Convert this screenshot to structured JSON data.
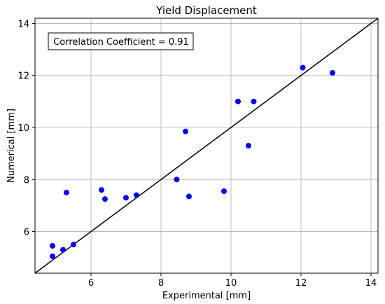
{
  "chart_data": {
    "type": "scatter",
    "title": "Yield Displacement",
    "xlabel": "Experimental [mm]",
    "ylabel": "Numerical [mm]",
    "xlim": [
      4.4,
      14.2
    ],
    "ylim": [
      4.4,
      14.2
    ],
    "xticks": [
      6,
      8,
      10,
      12,
      14
    ],
    "yticks": [
      6,
      8,
      10,
      12,
      14
    ],
    "grid": true,
    "annotation": "Correlation Coefficient = 0.91",
    "reference_line": {
      "from": [
        4.4,
        4.4
      ],
      "to": [
        14.2,
        14.2
      ],
      "color": "#000000"
    },
    "marker_color": "#0000ff",
    "series": [
      {
        "x": [
          4.9,
          4.9,
          5.2,
          5.3,
          5.5,
          6.3,
          6.4,
          7.0,
          7.3,
          8.45,
          8.7,
          8.8,
          9.8,
          10.2,
          10.5,
          10.65,
          12.05,
          12.9
        ],
        "y": [
          5.45,
          5.05,
          5.3,
          7.5,
          5.5,
          7.6,
          7.25,
          7.3,
          7.4,
          8.0,
          9.85,
          7.35,
          7.55,
          11.0,
          9.3,
          11.0,
          12.3,
          12.1
        ]
      }
    ]
  }
}
